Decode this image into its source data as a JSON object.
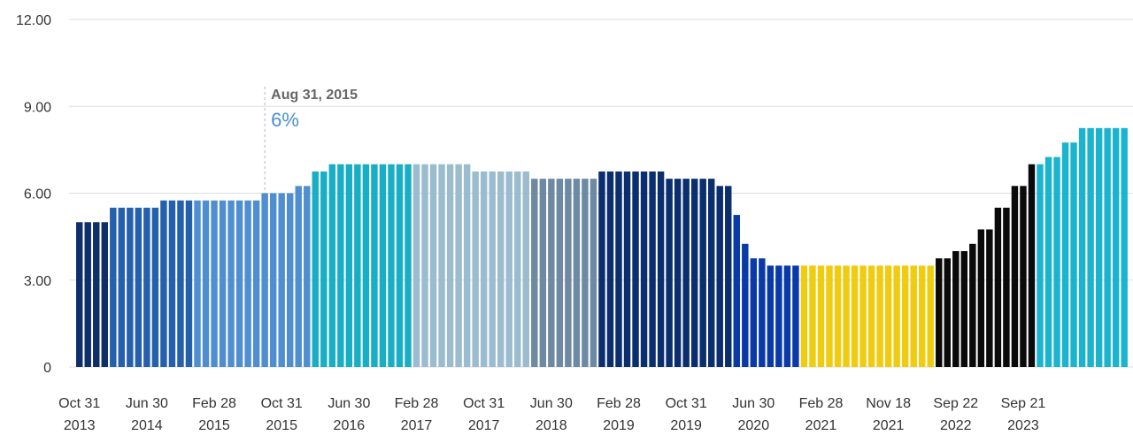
{
  "chart_data": {
    "type": "bar",
    "ylim": [
      0,
      12
    ],
    "y_ticks": [
      "0",
      "3.00",
      "6.00",
      "9.00",
      "12.00"
    ],
    "grid": true,
    "x_tick_labels": [
      {
        "line1": "Oct 31",
        "line2": "2013",
        "index": 0
      },
      {
        "line1": "Jun 30",
        "line2": "2014",
        "index": 8
      },
      {
        "line1": "Feb 28",
        "line2": "2015",
        "index": 16
      },
      {
        "line1": "Oct 31",
        "line2": "2015",
        "index": 24
      },
      {
        "line1": "Jun 30",
        "line2": "2016",
        "index": 32
      },
      {
        "line1": "Feb 28",
        "line2": "2017",
        "index": 40
      },
      {
        "line1": "Oct 31",
        "line2": "2017",
        "index": 48
      },
      {
        "line1": "Jun 30",
        "line2": "2018",
        "index": 56
      },
      {
        "line1": "Feb 28",
        "line2": "2019",
        "index": 64
      },
      {
        "line1": "Oct 31",
        "line2": "2019",
        "index": 72
      },
      {
        "line1": "Jun 30",
        "line2": "2020",
        "index": 80
      },
      {
        "line1": "Feb 28",
        "line2": "2021",
        "index": 88
      },
      {
        "line1": "Nov 18",
        "line2": "2021",
        "index": 96
      },
      {
        "line1": "Sep 22",
        "line2": "2022",
        "index": 104
      },
      {
        "line1": "Sep 21",
        "line2": "2023",
        "index": 112
      }
    ],
    "annotation": {
      "date": "Aug 31, 2015",
      "value": "6%",
      "index": 22
    },
    "colors": [
      "#0f2f6a",
      "#2560ac",
      "#4f8fd1",
      "#18aec5",
      "#9bbccf",
      "#6d8aa2",
      "#0b2f6e",
      "#0a3aa8",
      "#f0cc10",
      "#0a0a0a",
      "#1ab4cf"
    ],
    "values": [
      5,
      5,
      5,
      5,
      5.5,
      5.5,
      5.5,
      5.5,
      5.5,
      5.5,
      5.75,
      5.75,
      5.75,
      5.75,
      5.75,
      5.75,
      5.75,
      5.75,
      5.75,
      5.75,
      5.75,
      5.75,
      6,
      6,
      6,
      6,
      6.25,
      6.25,
      6.75,
      6.75,
      7,
      7,
      7,
      7,
      7,
      7,
      7,
      7,
      7,
      7,
      7,
      7,
      7,
      7,
      7,
      7,
      7,
      6.75,
      6.75,
      6.75,
      6.75,
      6.75,
      6.75,
      6.75,
      6.5,
      6.5,
      6.5,
      6.5,
      6.5,
      6.5,
      6.5,
      6.5,
      6.75,
      6.75,
      6.75,
      6.75,
      6.75,
      6.75,
      6.75,
      6.75,
      6.5,
      6.5,
      6.5,
      6.5,
      6.5,
      6.5,
      6.25,
      6.25,
      5.25,
      4.25,
      3.75,
      3.75,
      3.5,
      3.5,
      3.5,
      3.5,
      3.5,
      3.5,
      3.5,
      3.5,
      3.5,
      3.5,
      3.5,
      3.5,
      3.5,
      3.5,
      3.5,
      3.5,
      3.5,
      3.5,
      3.5,
      3.5,
      3.75,
      3.75,
      4,
      4,
      4.25,
      4.75,
      4.75,
      5.5,
      5.5,
      6.25,
      6.25,
      7,
      7,
      7.25,
      7.25,
      7.75,
      7.75,
      8.25,
      8.25,
      8.25,
      8.25,
      8.25,
      8.25
    ],
    "color_index": [
      0,
      0,
      0,
      0,
      1,
      1,
      1,
      1,
      1,
      1,
      1,
      1,
      1,
      1,
      2,
      2,
      2,
      2,
      2,
      2,
      2,
      2,
      2,
      2,
      2,
      2,
      2,
      2,
      3,
      3,
      3,
      3,
      3,
      3,
      3,
      3,
      3,
      3,
      3,
      3,
      4,
      4,
      4,
      4,
      4,
      4,
      4,
      4,
      4,
      4,
      4,
      4,
      4,
      4,
      5,
      5,
      5,
      5,
      5,
      5,
      5,
      5,
      6,
      6,
      6,
      6,
      6,
      6,
      6,
      6,
      6,
      6,
      6,
      6,
      6,
      6,
      6,
      6,
      7,
      7,
      7,
      7,
      7,
      7,
      7,
      7,
      8,
      8,
      8,
      8,
      8,
      8,
      8,
      8,
      8,
      8,
      8,
      8,
      8,
      8,
      8,
      8,
      9,
      9,
      9,
      9,
      9,
      9,
      9,
      9,
      9,
      9,
      9,
      9,
      10,
      10,
      10,
      10,
      10,
      10,
      10,
      10,
      10,
      10,
      10,
      10
    ]
  }
}
